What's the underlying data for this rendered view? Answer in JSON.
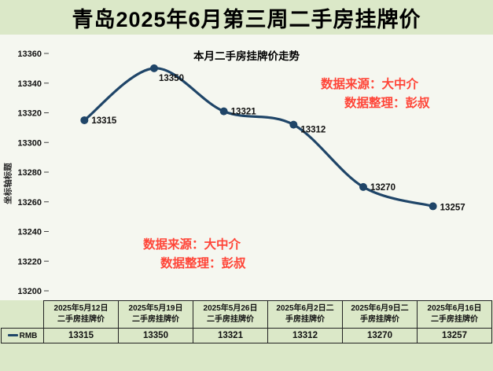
{
  "page_title": "青岛2025年6月第三周二手房挂牌价",
  "chart_data": {
    "type": "line",
    "title": "本月二手房挂牌价走势",
    "ylabel": "坐标轴标题",
    "xlabel": "",
    "categories": [
      "2025年5月12日",
      "2025年5月19日",
      "2025年5月26日",
      "2025年6月2日",
      "2025年6月9日",
      "2025年6月16日"
    ],
    "series": [
      {
        "name": "RMB",
        "values": [
          13315,
          13350,
          13321,
          13312,
          13270,
          13257
        ]
      }
    ],
    "ylim": [
      13200,
      13360
    ],
    "yticks": [
      13200,
      13220,
      13240,
      13260,
      13280,
      13300,
      13320,
      13340,
      13360
    ],
    "grid": false,
    "legend_position": "bottom-left",
    "line_color": "#1f4568",
    "marker": "circle"
  },
  "watermarks": [
    {
      "line1": "数据来源：大中介",
      "line2": "数据整理：彭叔"
    },
    {
      "line1": "数据来源：大中介",
      "line2": "数据整理：彭叔"
    }
  ],
  "table": {
    "corner": "",
    "row_label": "RMB",
    "headers": [
      "2025年5月12日\n二手房挂牌价",
      "2025年5月19日\n二手房挂牌价",
      "2025年5月26日\n二手房挂牌价",
      "2025年6月2日二\n手房挂牌价",
      "2025年6月9日二\n手房挂牌价",
      "2025年6月16日\n二手房挂牌价"
    ],
    "values": [
      "13315",
      "13350",
      "13321",
      "13312",
      "13270",
      "13257"
    ]
  },
  "colors": {
    "page_background": "#dbe8c8",
    "plot_background": "#f5f7f0",
    "line": "#1f4568",
    "watermark": "#ff4538",
    "text": "#111111"
  }
}
